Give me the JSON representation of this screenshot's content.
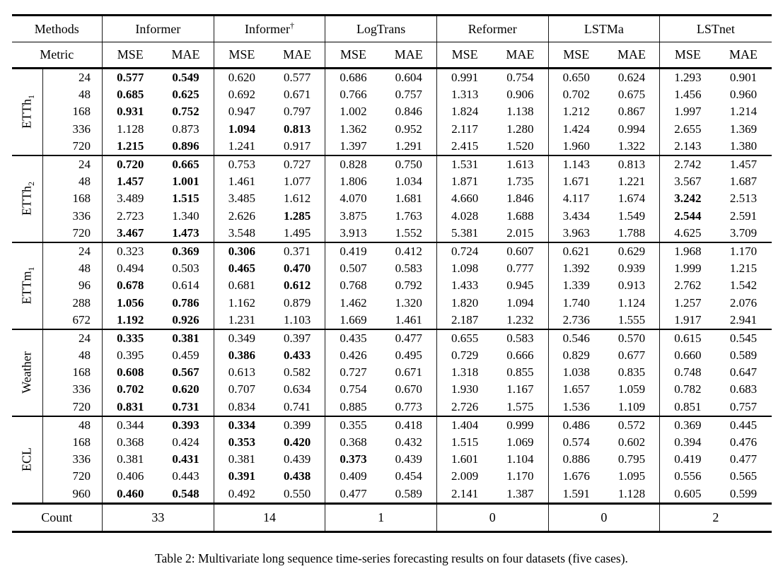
{
  "caption": "Table 2: Multivariate long sequence time-series forecasting results on four datasets (five cases).",
  "header": {
    "methods_label": "Methods",
    "metric_label": "Metric",
    "methods": [
      {
        "name": "Informer",
        "sup": ""
      },
      {
        "name": "Informer",
        "sup": "†"
      },
      {
        "name": "LogTrans",
        "sup": ""
      },
      {
        "name": "Reformer",
        "sup": ""
      },
      {
        "name": "LSTMa",
        "sup": ""
      },
      {
        "name": "LSTnet",
        "sup": ""
      }
    ],
    "metrics": [
      "MSE",
      "MAE"
    ]
  },
  "groups": [
    {
      "label": "ETTh",
      "sub": "1",
      "rows": [
        {
          "len": "24",
          "values": [
            "0.577",
            "0.549",
            "0.620",
            "0.577",
            "0.686",
            "0.604",
            "0.991",
            "0.754",
            "0.650",
            "0.624",
            "1.293",
            "0.901"
          ],
          "bold": [
            0,
            1
          ]
        },
        {
          "len": "48",
          "values": [
            "0.685",
            "0.625",
            "0.692",
            "0.671",
            "0.766",
            "0.757",
            "1.313",
            "0.906",
            "0.702",
            "0.675",
            "1.456",
            "0.960"
          ],
          "bold": [
            0,
            1
          ]
        },
        {
          "len": "168",
          "values": [
            "0.931",
            "0.752",
            "0.947",
            "0.797",
            "1.002",
            "0.846",
            "1.824",
            "1.138",
            "1.212",
            "0.867",
            "1.997",
            "1.214"
          ],
          "bold": [
            0,
            1
          ]
        },
        {
          "len": "336",
          "values": [
            "1.128",
            "0.873",
            "1.094",
            "0.813",
            "1.362",
            "0.952",
            "2.117",
            "1.280",
            "1.424",
            "0.994",
            "2.655",
            "1.369"
          ],
          "bold": [
            2,
            3
          ]
        },
        {
          "len": "720",
          "values": [
            "1.215",
            "0.896",
            "1.241",
            "0.917",
            "1.397",
            "1.291",
            "2.415",
            "1.520",
            "1.960",
            "1.322",
            "2.143",
            "1.380"
          ],
          "bold": [
            0,
            1
          ]
        }
      ]
    },
    {
      "label": "ETTh",
      "sub": "2",
      "rows": [
        {
          "len": "24",
          "values": [
            "0.720",
            "0.665",
            "0.753",
            "0.727",
            "0.828",
            "0.750",
            "1.531",
            "1.613",
            "1.143",
            "0.813",
            "2.742",
            "1.457"
          ],
          "bold": [
            0,
            1
          ]
        },
        {
          "len": "48",
          "values": [
            "1.457",
            "1.001",
            "1.461",
            "1.077",
            "1.806",
            "1.034",
            "1.871",
            "1.735",
            "1.671",
            "1.221",
            "3.567",
            "1.687"
          ],
          "bold": [
            0,
            1
          ]
        },
        {
          "len": "168",
          "values": [
            "3.489",
            "1.515",
            "3.485",
            "1.612",
            "4.070",
            "1.681",
            "4.660",
            "1.846",
            "4.117",
            "1.674",
            "3.242",
            "2.513"
          ],
          "bold": [
            1,
            10
          ]
        },
        {
          "len": "336",
          "values": [
            "2.723",
            "1.340",
            "2.626",
            "1.285",
            "3.875",
            "1.763",
            "4.028",
            "1.688",
            "3.434",
            "1.549",
            "2.544",
            "2.591"
          ],
          "bold": [
            3,
            10
          ]
        },
        {
          "len": "720",
          "values": [
            "3.467",
            "1.473",
            "3.548",
            "1.495",
            "3.913",
            "1.552",
            "5.381",
            "2.015",
            "3.963",
            "1.788",
            "4.625",
            "3.709"
          ],
          "bold": [
            0,
            1
          ]
        }
      ]
    },
    {
      "label": "ETTm",
      "sub": "1",
      "rows": [
        {
          "len": "24",
          "values": [
            "0.323",
            "0.369",
            "0.306",
            "0.371",
            "0.419",
            "0.412",
            "0.724",
            "0.607",
            "0.621",
            "0.629",
            "1.968",
            "1.170"
          ],
          "bold": [
            1,
            2
          ]
        },
        {
          "len": "48",
          "values": [
            "0.494",
            "0.503",
            "0.465",
            "0.470",
            "0.507",
            "0.583",
            "1.098",
            "0.777",
            "1.392",
            "0.939",
            "1.999",
            "1.215"
          ],
          "bold": [
            2,
            3
          ]
        },
        {
          "len": "96",
          "values": [
            "0.678",
            "0.614",
            "0.681",
            "0.612",
            "0.768",
            "0.792",
            "1.433",
            "0.945",
            "1.339",
            "0.913",
            "2.762",
            "1.542"
          ],
          "bold": [
            0,
            3
          ]
        },
        {
          "len": "288",
          "values": [
            "1.056",
            "0.786",
            "1.162",
            "0.879",
            "1.462",
            "1.320",
            "1.820",
            "1.094",
            "1.740",
            "1.124",
            "1.257",
            "2.076"
          ],
          "bold": [
            0,
            1
          ]
        },
        {
          "len": "672",
          "values": [
            "1.192",
            "0.926",
            "1.231",
            "1.103",
            "1.669",
            "1.461",
            "2.187",
            "1.232",
            "2.736",
            "1.555",
            "1.917",
            "2.941"
          ],
          "bold": [
            0,
            1
          ]
        }
      ]
    },
    {
      "label": "Weather",
      "sub": "",
      "rows": [
        {
          "len": "24",
          "values": [
            "0.335",
            "0.381",
            "0.349",
            "0.397",
            "0.435",
            "0.477",
            "0.655",
            "0.583",
            "0.546",
            "0.570",
            "0.615",
            "0.545"
          ],
          "bold": [
            0,
            1
          ]
        },
        {
          "len": "48",
          "values": [
            "0.395",
            "0.459",
            "0.386",
            "0.433",
            "0.426",
            "0.495",
            "0.729",
            "0.666",
            "0.829",
            "0.677",
            "0.660",
            "0.589"
          ],
          "bold": [
            2,
            3
          ]
        },
        {
          "len": "168",
          "values": [
            "0.608",
            "0.567",
            "0.613",
            "0.582",
            "0.727",
            "0.671",
            "1.318",
            "0.855",
            "1.038",
            "0.835",
            "0.748",
            "0.647"
          ],
          "bold": [
            0,
            1
          ]
        },
        {
          "len": "336",
          "values": [
            "0.702",
            "0.620",
            "0.707",
            "0.634",
            "0.754",
            "0.670",
            "1.930",
            "1.167",
            "1.657",
            "1.059",
            "0.782",
            "0.683"
          ],
          "bold": [
            0,
            1
          ]
        },
        {
          "len": "720",
          "values": [
            "0.831",
            "0.731",
            "0.834",
            "0.741",
            "0.885",
            "0.773",
            "2.726",
            "1.575",
            "1.536",
            "1.109",
            "0.851",
            "0.757"
          ],
          "bold": [
            0,
            1
          ]
        }
      ]
    },
    {
      "label": "ECL",
      "sub": "",
      "rows": [
        {
          "len": "48",
          "values": [
            "0.344",
            "0.393",
            "0.334",
            "0.399",
            "0.355",
            "0.418",
            "1.404",
            "0.999",
            "0.486",
            "0.572",
            "0.369",
            "0.445"
          ],
          "bold": [
            1,
            2
          ]
        },
        {
          "len": "168",
          "values": [
            "0.368",
            "0.424",
            "0.353",
            "0.420",
            "0.368",
            "0.432",
            "1.515",
            "1.069",
            "0.574",
            "0.602",
            "0.394",
            "0.476"
          ],
          "bold": [
            2,
            3
          ]
        },
        {
          "len": "336",
          "values": [
            "0.381",
            "0.431",
            "0.381",
            "0.439",
            "0.373",
            "0.439",
            "1.601",
            "1.104",
            "0.886",
            "0.795",
            "0.419",
            "0.477"
          ],
          "bold": [
            1,
            4
          ]
        },
        {
          "len": "720",
          "values": [
            "0.406",
            "0.443",
            "0.391",
            "0.438",
            "0.409",
            "0.454",
            "2.009",
            "1.170",
            "1.676",
            "1.095",
            "0.556",
            "0.565"
          ],
          "bold": [
            2,
            3
          ]
        },
        {
          "len": "960",
          "values": [
            "0.460",
            "0.548",
            "0.492",
            "0.550",
            "0.477",
            "0.589",
            "2.141",
            "1.387",
            "1.591",
            "1.128",
            "0.605",
            "0.599"
          ],
          "bold": [
            0,
            1
          ]
        }
      ]
    }
  ],
  "footer": {
    "count_label": "Count",
    "counts": [
      "33",
      "14",
      "1",
      "0",
      "0",
      "2"
    ]
  }
}
